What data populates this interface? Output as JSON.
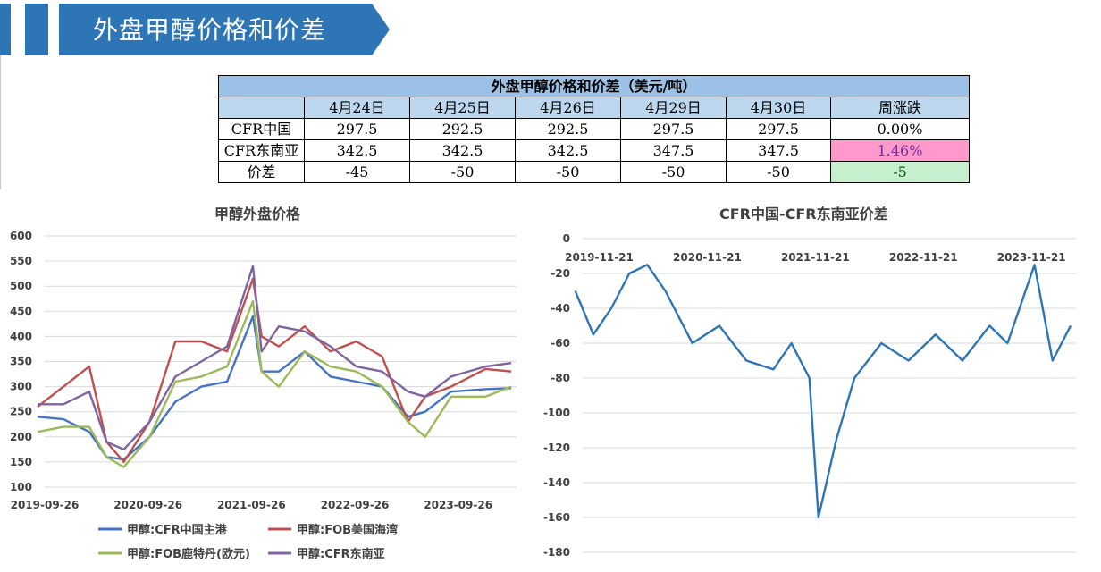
{
  "header": {
    "title": "外盘甲醇价格和价差"
  },
  "table": {
    "title": "外盘甲醇价格和价差（美元/吨）",
    "columns": [
      "4月24日",
      "4月25日",
      "4月26日",
      "4月29日",
      "4月30日",
      "周涨跌"
    ],
    "rows": [
      {
        "label": "CFR中国",
        "values": [
          "297.5",
          "292.5",
          "292.5",
          "297.5",
          "297.5"
        ],
        "change": "0.00%"
      },
      {
        "label": "CFR东南亚",
        "values": [
          "342.5",
          "342.5",
          "342.5",
          "347.5",
          "347.5"
        ],
        "change": "1.46%"
      },
      {
        "label": "价差",
        "values": [
          "-45",
          "-50",
          "-50",
          "-50",
          "-50"
        ],
        "change": "-5"
      }
    ]
  },
  "chart_data": [
    {
      "type": "line",
      "title": "甲醇外盘价格",
      "ylim": [
        100,
        600
      ],
      "yticks": [
        100,
        150,
        200,
        250,
        300,
        350,
        400,
        450,
        500,
        550,
        600
      ],
      "xticks": [
        "2019-09-26",
        "2020-09-26",
        "2021-09-26",
        "2022-09-26",
        "2023-09-26"
      ],
      "grid": true,
      "legend": "bottom",
      "x": [
        "2019-09",
        "2019-12",
        "2020-03",
        "2020-05",
        "2020-07",
        "2020-10",
        "2021-01",
        "2021-04",
        "2021-07",
        "2021-10",
        "2021-11",
        "2022-01",
        "2022-04",
        "2022-07",
        "2022-10",
        "2023-01",
        "2023-04",
        "2023-06",
        "2023-09",
        "2024-01",
        "2024-04"
      ],
      "series": [
        {
          "name": "甲醇:CFR中国主港",
          "color": "#4472c4",
          "values": [
            240,
            235,
            210,
            160,
            155,
            200,
            270,
            300,
            310,
            440,
            330,
            330,
            370,
            320,
            310,
            300,
            240,
            250,
            290,
            295,
            297
          ]
        },
        {
          "name": "甲醇:FOB美国海湾",
          "color": "#c0504d",
          "values": [
            260,
            300,
            340,
            190,
            150,
            230,
            390,
            390,
            370,
            515,
            400,
            380,
            420,
            370,
            390,
            360,
            230,
            280,
            300,
            335,
            330
          ]
        },
        {
          "name": "甲醇:FOB鹿特丹(欧元)",
          "color": "#9bbb59",
          "values": [
            210,
            220,
            220,
            160,
            140,
            200,
            310,
            320,
            340,
            470,
            330,
            300,
            370,
            340,
            330,
            300,
            230,
            200,
            280,
            280,
            300
          ]
        },
        {
          "name": "甲醇:CFR东南亚",
          "color": "#8064a2",
          "values": [
            265,
            265,
            290,
            190,
            175,
            230,
            320,
            350,
            380,
            540,
            370,
            420,
            410,
            380,
            340,
            330,
            290,
            280,
            320,
            340,
            347
          ]
        }
      ]
    },
    {
      "type": "line",
      "title": "CFR中国-CFR东南亚价差",
      "ylim": [
        -180,
        0
      ],
      "yticks": [
        0,
        -20,
        -40,
        -60,
        -80,
        -100,
        -120,
        -140,
        -160,
        -180
      ],
      "xticks": [
        "2019-11-21",
        "2020-11-21",
        "2021-11-21",
        "2022-11-21",
        "2023-11-21"
      ],
      "grid": true,
      "legend": "none",
      "x": [
        "2019-09",
        "2019-11",
        "2020-01",
        "2020-03",
        "2020-05",
        "2020-07",
        "2020-10",
        "2021-01",
        "2021-04",
        "2021-07",
        "2021-09",
        "2021-11",
        "2021-12",
        "2022-02",
        "2022-04",
        "2022-07",
        "2022-10",
        "2023-01",
        "2023-04",
        "2023-07",
        "2023-09",
        "2023-12",
        "2024-02",
        "2024-04"
      ],
      "series": [
        {
          "name": "",
          "color": "#2e75b6",
          "values": [
            -30,
            -55,
            -40,
            -20,
            -15,
            -30,
            -60,
            -50,
            -70,
            -75,
            -60,
            -80,
            -160,
            -115,
            -80,
            -60,
            -70,
            -55,
            -70,
            -50,
            -60,
            -15,
            -70,
            -50
          ]
        }
      ]
    }
  ]
}
